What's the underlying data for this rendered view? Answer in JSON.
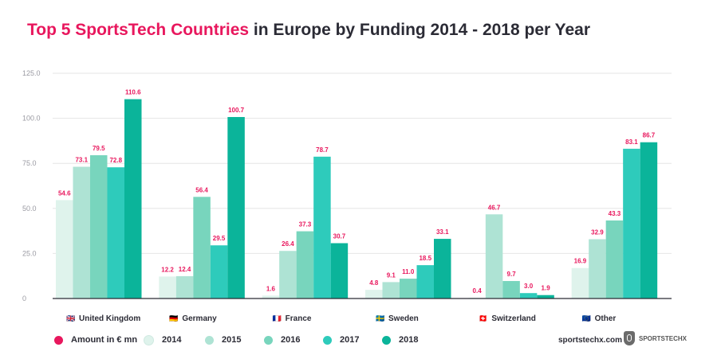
{
  "title": {
    "accent": "Top 5 SportsTech Countries",
    "rest": " in Europe by Funding 2014 - 2018 per Year"
  },
  "chart_data": {
    "type": "bar",
    "title": "Top 5 SportsTech Countries in Europe by Funding 2014 - 2018 per Year",
    "categories": [
      "United Kingdom",
      "Germany",
      "France",
      "Sweden",
      "Switzerland",
      "Other"
    ],
    "category_flags": [
      "🇬🇧",
      "🇩🇪",
      "🇫🇷",
      "🇸🇪",
      "🇨🇭",
      "🇪🇺"
    ],
    "series": [
      {
        "name": "2014",
        "color": "#dff3ec",
        "values": [
          54.6,
          12.2,
          1.6,
          4.8,
          0.4,
          16.9
        ]
      },
      {
        "name": "2015",
        "color": "#aee3d4",
        "values": [
          73.1,
          12.4,
          26.4,
          9.1,
          46.7,
          32.9
        ]
      },
      {
        "name": "2016",
        "color": "#78d5bd",
        "values": [
          79.5,
          56.4,
          37.3,
          11.0,
          9.7,
          43.3
        ]
      },
      {
        "name": "2017",
        "color": "#2ecbbb",
        "values": [
          72.8,
          29.5,
          78.7,
          18.5,
          3.0,
          83.1
        ]
      },
      {
        "name": "2018",
        "color": "#0bb49a",
        "values": [
          110.6,
          100.7,
          30.7,
          33.1,
          1.9,
          86.7
        ]
      }
    ],
    "yticks": [
      "0",
      "25.0",
      "50.0",
      "75.0",
      "100.0",
      "125.0"
    ],
    "ylim": [
      0,
      125
    ],
    "grid": true,
    "legend_position": "bottom-left",
    "label_color": "#e8175d"
  },
  "legend": {
    "measure_label": "Amount in € mn",
    "measure_color": "#e8175d",
    "items": [
      {
        "label": "2014",
        "color": "#dff3ec"
      },
      {
        "label": "2015",
        "color": "#aee3d4"
      },
      {
        "label": "2016",
        "color": "#78d5bd"
      },
      {
        "label": "2017",
        "color": "#2ecbbb"
      },
      {
        "label": "2018",
        "color": "#0bb49a"
      }
    ]
  },
  "brand": {
    "url": "sportstechx.com",
    "logo_text": "SPORTSTECHX"
  }
}
